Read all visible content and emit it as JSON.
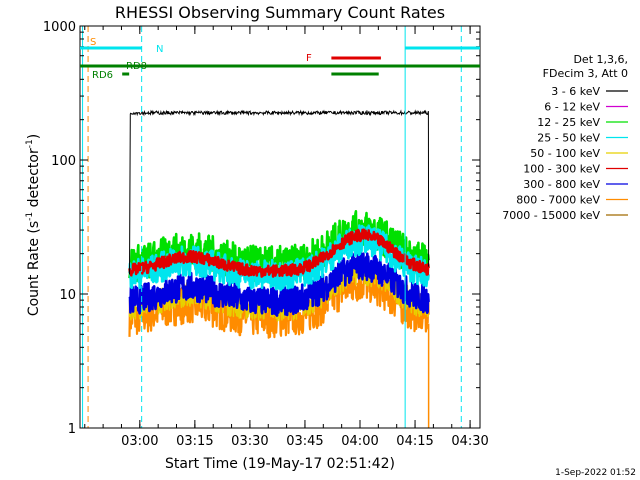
{
  "chart_data": {
    "type": "line",
    "title": "RHESSI Observing Summary Count Rates",
    "xlabel": "Start Time (19-May-17 02:51:42)",
    "ylabel_main": "Count Rate (s",
    "ylabel_sup1": "-1",
    "ylabel_mid": " detector",
    "ylabel_sup2": "-1",
    "ylabel_end": ")",
    "yscale": "log",
    "ylim": [
      1,
      1000
    ],
    "xlim_min": [
      -8.0,
      101.0
    ],
    "x_unit": "minutes since 02:51:42",
    "x_ticks": [
      {
        "t": 8.3,
        "label": "03:00"
      },
      {
        "t": 23.3,
        "label": "03:15"
      },
      {
        "t": 38.3,
        "label": "03:30"
      },
      {
        "t": 53.3,
        "label": "03:45"
      },
      {
        "t": 68.3,
        "label": "04:00"
      },
      {
        "t": 83.3,
        "label": "04:15"
      },
      {
        "t": 98.3,
        "label": "04:30"
      }
    ],
    "y_ticks": [
      {
        "v": 1,
        "label": "1"
      },
      {
        "v": 10,
        "label": "10"
      },
      {
        "v": 100,
        "label": "100"
      },
      {
        "v": 1000,
        "label": "1000"
      }
    ],
    "legend_header": [
      "Det 1,3,6,",
      "FDecim 3, Att 0"
    ],
    "series": [
      {
        "name": "3 - 6 keV",
        "color": "#000000"
      },
      {
        "name": "6 - 12 keV",
        "color": "#d000d0"
      },
      {
        "name": "12 - 25 keV",
        "color": "#00e000"
      },
      {
        "name": "25 - 50 keV",
        "color": "#00e5ee"
      },
      {
        "name": "50 - 100 keV",
        "color": "#e8d000"
      },
      {
        "name": "100 - 300 keV",
        "color": "#e00000"
      },
      {
        "name": "300 - 800 keV",
        "color": "#0000e0"
      },
      {
        "name": "800 - 7000 keV",
        "color": "#ff8c00"
      },
      {
        "name": "7000 - 15000 keV",
        "color": "#a06a00"
      }
    ],
    "flags": {
      "S": {
        "label": "S",
        "color": "#ff8c00"
      },
      "N": {
        "label": "N",
        "color": "#00e5ee"
      },
      "F": {
        "label": "F",
        "color": "#e00000"
      },
      "RD6": {
        "label": "RD6",
        "color": "#008000"
      },
      "RD8": {
        "label": "RD8",
        "color": "#008000"
      }
    }
  },
  "footer_timestamp": "1-Sep-2022 01:52"
}
